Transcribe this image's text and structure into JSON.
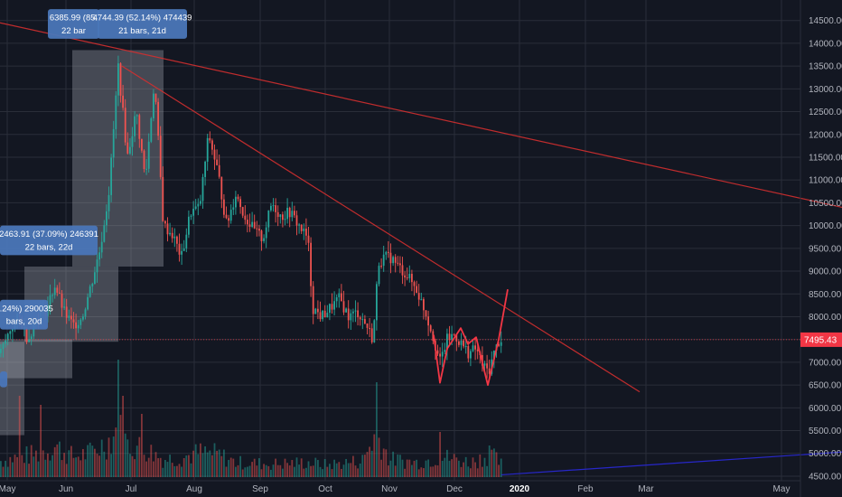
{
  "chart_data": {
    "type": "candlestick",
    "y_range": [
      4400,
      14950
    ],
    "price_axis_ticks": [
      "4500.00",
      "5000.00",
      "5500.00",
      "6000.00",
      "6500.00",
      "7000.00",
      "7500.00",
      "8000.00",
      "8500.00",
      "9000.00",
      "9500.00",
      "10000.00",
      "10500.00",
      "11000.00",
      "11500.00",
      "12000.00",
      "12500.00",
      "13000.00",
      "13500.00",
      "14000.00",
      "14500.00"
    ],
    "month_labels": [
      {
        "label": "May",
        "year": false
      },
      {
        "label": "Jun",
        "year": false
      },
      {
        "label": "Jul",
        "year": false
      },
      {
        "label": "Aug",
        "year": false
      },
      {
        "label": "Sep",
        "year": false
      },
      {
        "label": "Oct",
        "year": false
      },
      {
        "label": "Nov",
        "year": false
      },
      {
        "label": "Dec",
        "year": false
      },
      {
        "label": "2020",
        "year": true
      },
      {
        "label": "Feb",
        "year": false
      },
      {
        "label": "Mar",
        "year": false
      },
      {
        "label": "May",
        "year": false
      }
    ],
    "current_price": "7495.43",
    "current_price_value": 7495.43,
    "price_path": [
      [
        0,
        7200
      ],
      [
        10,
        7700
      ],
      [
        20,
        8000
      ],
      [
        30,
        7500
      ],
      [
        40,
        8000
      ],
      [
        50,
        8150
      ],
      [
        60,
        8700
      ],
      [
        70,
        8100
      ],
      [
        80,
        7800
      ],
      [
        90,
        8000
      ],
      [
        100,
        8700
      ],
      [
        110,
        9500
      ],
      [
        120,
        10800
      ],
      [
        130,
        13500
      ],
      [
        140,
        11500
      ],
      [
        150,
        12500
      ],
      [
        160,
        11000
      ],
      [
        170,
        13200
      ],
      [
        180,
        10000
      ],
      [
        190,
        9800
      ],
      [
        200,
        9300
      ],
      [
        210,
        10300
      ],
      [
        220,
        10400
      ],
      [
        230,
        12000
      ],
      [
        240,
        11200
      ],
      [
        250,
        10000
      ],
      [
        260,
        10700
      ],
      [
        270,
        10200
      ],
      [
        280,
        9900
      ],
      [
        290,
        9700
      ],
      [
        300,
        10500
      ],
      [
        310,
        10200
      ],
      [
        320,
        10300
      ],
      [
        330,
        10000
      ],
      [
        340,
        9700
      ],
      [
        345,
        8200
      ],
      [
        355,
        8000
      ],
      [
        365,
        8200
      ],
      [
        375,
        8400
      ],
      [
        385,
        8000
      ],
      [
        395,
        8100
      ],
      [
        405,
        7800
      ],
      [
        412,
        7500
      ],
      [
        418,
        9200
      ],
      [
        425,
        9300
      ],
      [
        432,
        9300
      ],
      [
        440,
        9100
      ],
      [
        450,
        8900
      ],
      [
        460,
        8600
      ],
      [
        470,
        8100
      ],
      [
        478,
        7600
      ],
      [
        486,
        7000
      ],
      [
        494,
        7500
      ],
      [
        502,
        7600
      ],
      [
        510,
        7400
      ],
      [
        518,
        7200
      ],
      [
        526,
        7300
      ],
      [
        534,
        6900
      ],
      [
        540,
        6800
      ],
      [
        546,
        7200
      ],
      [
        552,
        7500
      ]
    ],
    "volume_path": [
      [
        0,
        20
      ],
      [
        20,
        25
      ],
      [
        40,
        28
      ],
      [
        60,
        38
      ],
      [
        80,
        25
      ],
      [
        100,
        30
      ],
      [
        120,
        45
      ],
      [
        130,
        60
      ],
      [
        140,
        40
      ],
      [
        160,
        35
      ],
      [
        180,
        22
      ],
      [
        200,
        24
      ],
      [
        220,
        30
      ],
      [
        240,
        28
      ],
      [
        260,
        18
      ],
      [
        300,
        16
      ],
      [
        340,
        18
      ],
      [
        360,
        15
      ],
      [
        400,
        20
      ],
      [
        416,
        55
      ],
      [
        430,
        22
      ],
      [
        460,
        18
      ],
      [
        490,
        25
      ],
      [
        520,
        18
      ],
      [
        542,
        28
      ],
      [
        555,
        15
      ]
    ],
    "volume_spikes": [
      [
        22,
        90
      ],
      [
        45,
        80
      ],
      [
        130,
        130
      ],
      [
        135,
        90
      ],
      [
        155,
        70
      ],
      [
        415,
        105
      ],
      [
        487,
        50
      ],
      [
        541,
        35
      ]
    ],
    "pattern_points": [
      {
        "time": 480,
        "price": 7600
      },
      {
        "time": 487,
        "price": 6550
      },
      {
        "time": 495,
        "price": 7300
      },
      {
        "time": 510,
        "price": 7750
      },
      {
        "time": 518,
        "price": 7400
      },
      {
        "time": 527,
        "price": 7550
      },
      {
        "time": 540,
        "price": 6500
      },
      {
        "time": 552,
        "price": 7500
      },
      {
        "time": 562,
        "price": 8600
      }
    ],
    "trendlines": [
      {
        "from": {
          "time": 0,
          "price": 14450
        },
        "to": {
          "time": 932,
          "price": 10400
        },
        "color": "#d32f2f"
      },
      {
        "from": {
          "time": 135,
          "price": 13500
        },
        "to": {
          "time": 708,
          "price": 6350
        },
        "color": "#d32f2f"
      }
    ],
    "support_line": {
      "from": {
        "time": 555,
        "price": 4530
      },
      "to": {
        "time": 932,
        "price": 5030
      },
      "color": "#2727c9"
    },
    "measure_boxes": [
      {
        "time_from": 80,
        "time_to": 181,
        "price_from": 9100,
        "price_to": 13850
      },
      {
        "time_from": 27,
        "time_to": 131,
        "price_from": 7450,
        "price_to": 9100
      },
      {
        "time_from": 0,
        "time_to": 80,
        "price_from": 6650,
        "price_to": 7500
      },
      {
        "time_from": 0,
        "time_to": 27,
        "price_from": 5400,
        "price_to": 7450
      }
    ],
    "measure_labels": [
      {
        "line1": "6385.99 (85.",
        "line2": "22 bar",
        "time_from": 53,
        "time_to": 110,
        "price_from": 14100,
        "price_to": 14750
      },
      {
        "line1": "4744.39 (52.14%) 474439",
        "line2": "21 bars, 21d",
        "time_from": 108,
        "time_to": 207,
        "price_from": 14100,
        "price_to": 14750
      },
      {
        "line1": "2463.91 (37.09%) 246391",
        "line2": "22 bars, 22d",
        "time_from": 0,
        "time_to": 108,
        "price_from": 9350,
        "price_to": 10000
      },
      {
        "line1": "0.24%) 290035",
        "line2": "bars, 20d",
        "time_from": 0,
        "time_to": 53,
        "price_from": 7720,
        "price_to": 8370
      },
      {
        "line1": "",
        "line2": "",
        "time_from": 0,
        "time_to": 8,
        "price_from": 6800,
        "price_to": 6450
      }
    ]
  }
}
